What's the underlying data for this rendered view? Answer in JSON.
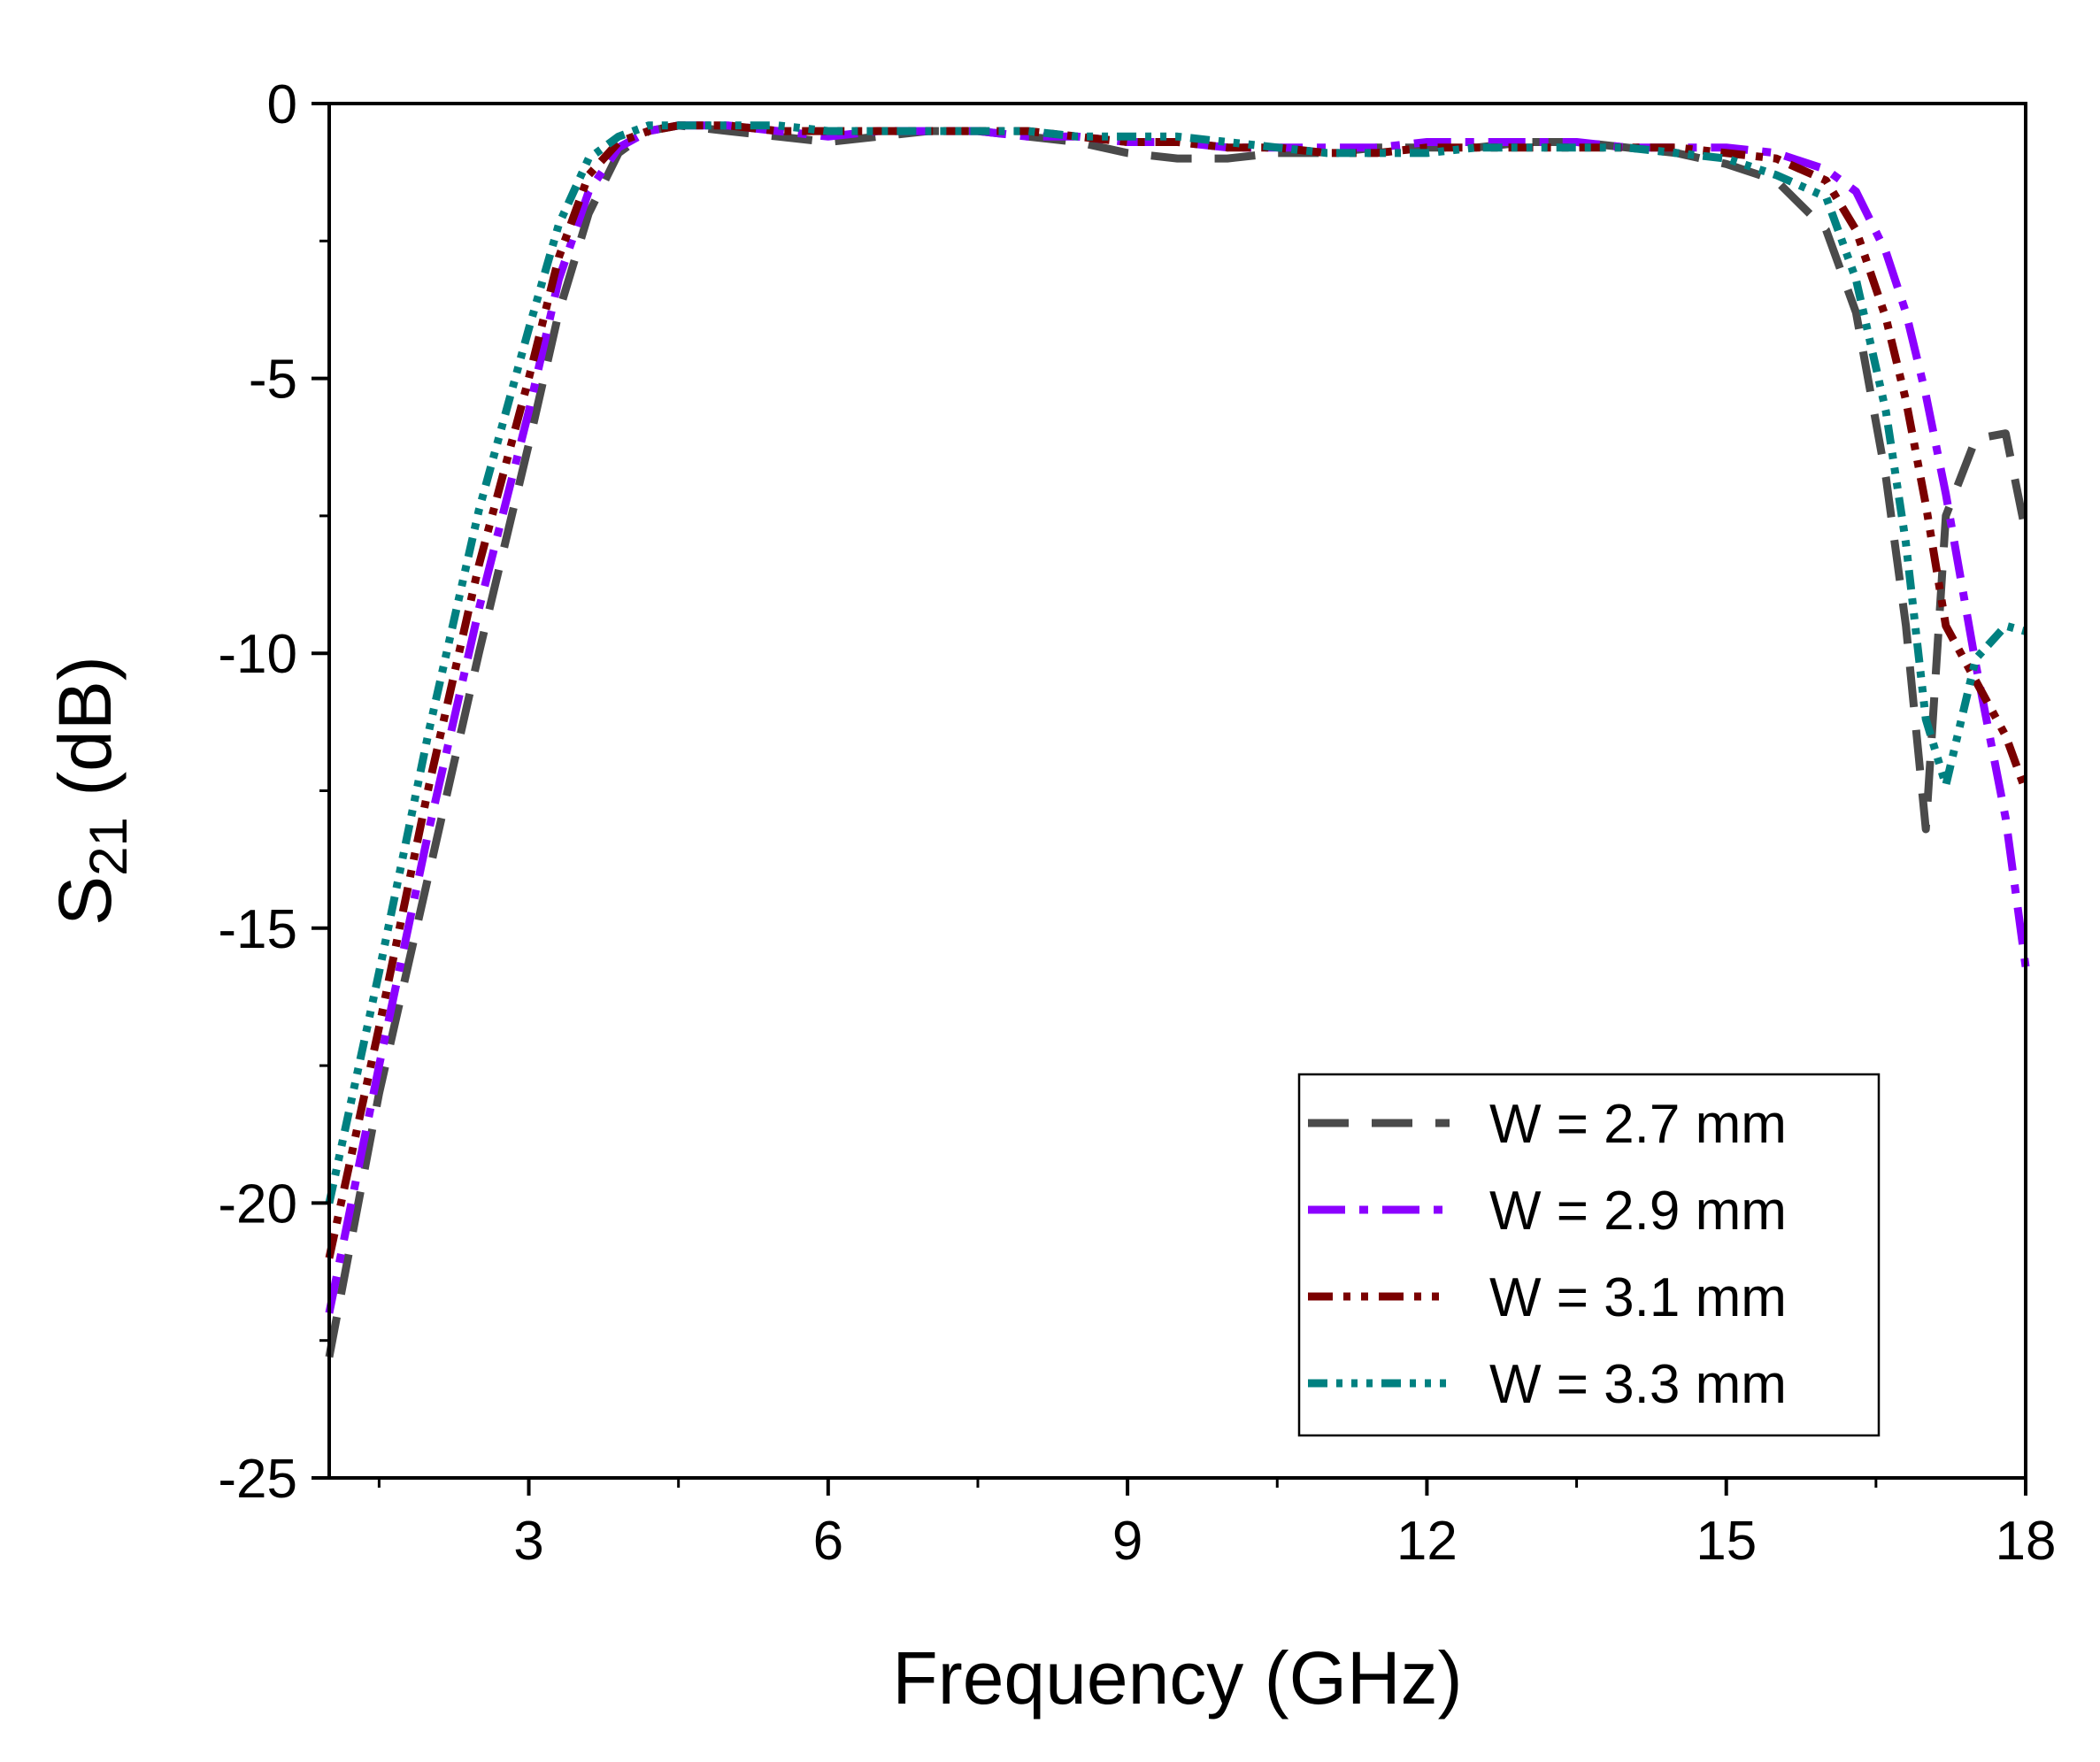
{
  "chart_data": {
    "type": "line",
    "title": "",
    "xlabel": "Frequency (GHz)",
    "ylabel_main": "S",
    "ylabel_sub": "21",
    "ylabel_unit": " (dB)",
    "xlim": [
      1,
      18
    ],
    "ylim": [
      -25,
      0
    ],
    "xticks": [
      3,
      6,
      9,
      12,
      15,
      18
    ],
    "xtick_labels": [
      "3",
      "6",
      "9",
      "12",
      "15",
      "18"
    ],
    "yticks": [
      0,
      -5,
      -10,
      -15,
      -20,
      -25
    ],
    "ytick_labels": [
      "0",
      "-5",
      "-10",
      "-15",
      "-20",
      "-25"
    ],
    "grid": false,
    "legend_position": "bottom-right",
    "series": [
      {
        "name": "W = 2.7 mm",
        "color": "#4a4a4a",
        "dash": "dashed",
        "x": [
          1.0,
          1.5,
          2.0,
          2.5,
          3.0,
          3.3,
          3.6,
          3.9,
          4.2,
          4.5,
          5.0,
          5.5,
          6.0,
          6.5,
          7.0,
          7.5,
          8.0,
          8.5,
          9.0,
          9.5,
          10.0,
          10.5,
          11.0,
          11.5,
          12.0,
          12.5,
          13.0,
          13.5,
          14.0,
          14.5,
          15.0,
          15.5,
          16.0,
          16.3,
          16.6,
          16.8,
          17.0,
          17.2,
          17.5,
          17.8,
          18.0
        ],
        "y": [
          -22.8,
          -18.0,
          -14.0,
          -10.0,
          -6.2,
          -3.8,
          -2.0,
          -0.9,
          -0.5,
          -0.4,
          -0.5,
          -0.6,
          -0.7,
          -0.6,
          -0.5,
          -0.5,
          -0.6,
          -0.7,
          -0.9,
          -1.0,
          -1.0,
          -0.9,
          -0.9,
          -0.8,
          -0.8,
          -0.8,
          -0.7,
          -0.7,
          -0.8,
          -0.9,
          -1.1,
          -1.4,
          -2.3,
          -3.8,
          -6.8,
          -9.5,
          -13.2,
          -7.5,
          -6.1,
          -6.0,
          -7.8
        ]
      },
      {
        "name": "W = 2.9 mm",
        "color": "#8b00ff",
        "dash": "dash-dot",
        "x": [
          1.0,
          1.5,
          2.0,
          2.5,
          3.0,
          3.3,
          3.6,
          3.9,
          4.2,
          4.5,
          5.0,
          5.5,
          6.0,
          6.5,
          7.0,
          7.5,
          8.0,
          8.5,
          9.0,
          9.5,
          10.0,
          10.5,
          11.0,
          11.5,
          12.0,
          12.5,
          13.0,
          13.5,
          14.0,
          14.5,
          15.0,
          15.5,
          16.0,
          16.3,
          16.6,
          16.8,
          17.0,
          17.2,
          17.5,
          17.8,
          18.0
        ],
        "y": [
          -22.0,
          -17.5,
          -13.2,
          -9.2,
          -5.6,
          -3.2,
          -1.6,
          -0.8,
          -0.5,
          -0.4,
          -0.4,
          -0.5,
          -0.6,
          -0.5,
          -0.5,
          -0.5,
          -0.6,
          -0.6,
          -0.7,
          -0.7,
          -0.8,
          -0.8,
          -0.8,
          -0.8,
          -0.7,
          -0.7,
          -0.7,
          -0.7,
          -0.8,
          -0.8,
          -0.8,
          -0.9,
          -1.2,
          -1.6,
          -2.7,
          -3.8,
          -5.3,
          -7.1,
          -10.2,
          -13.0,
          -15.7
        ]
      },
      {
        "name": "W = 3.1 mm",
        "color": "#7a0000",
        "dash": "dash-dot-dot",
        "x": [
          1.0,
          1.5,
          2.0,
          2.5,
          3.0,
          3.3,
          3.6,
          3.9,
          4.2,
          4.5,
          5.0,
          5.5,
          6.0,
          6.5,
          7.0,
          7.5,
          8.0,
          8.5,
          9.0,
          9.5,
          10.0,
          10.5,
          11.0,
          11.5,
          12.0,
          12.5,
          13.0,
          13.5,
          14.0,
          14.5,
          15.0,
          15.5,
          16.0,
          16.3,
          16.6,
          16.8,
          17.0,
          17.2,
          17.5,
          17.8,
          18.0
        ],
        "y": [
          -21.0,
          -16.8,
          -12.4,
          -8.4,
          -5.0,
          -2.8,
          -1.3,
          -0.7,
          -0.5,
          -0.4,
          -0.4,
          -0.5,
          -0.5,
          -0.5,
          -0.5,
          -0.5,
          -0.5,
          -0.6,
          -0.7,
          -0.7,
          -0.8,
          -0.8,
          -0.9,
          -0.9,
          -0.8,
          -0.8,
          -0.8,
          -0.8,
          -0.8,
          -0.8,
          -0.9,
          -1.0,
          -1.4,
          -2.3,
          -3.9,
          -5.4,
          -7.3,
          -9.5,
          -10.5,
          -11.5,
          -12.5
        ]
      },
      {
        "name": "W = 3.3 mm",
        "color": "#008080",
        "dash": "dash-dot-dot-dot",
        "x": [
          1.0,
          1.5,
          2.0,
          2.5,
          3.0,
          3.3,
          3.6,
          3.9,
          4.2,
          4.5,
          5.0,
          5.5,
          6.0,
          6.5,
          7.0,
          7.5,
          8.0,
          8.5,
          9.0,
          9.5,
          10.0,
          10.5,
          11.0,
          11.5,
          12.0,
          12.5,
          13.0,
          13.5,
          14.0,
          14.5,
          15.0,
          15.5,
          16.0,
          16.3,
          16.6,
          16.8,
          17.0,
          17.2,
          17.5,
          17.8,
          18.0
        ],
        "y": [
          -20.0,
          -15.8,
          -11.4,
          -7.4,
          -4.1,
          -2.2,
          -1.0,
          -0.6,
          -0.4,
          -0.4,
          -0.4,
          -0.4,
          -0.5,
          -0.5,
          -0.5,
          -0.5,
          -0.5,
          -0.6,
          -0.6,
          -0.6,
          -0.7,
          -0.8,
          -0.9,
          -0.9,
          -0.9,
          -0.8,
          -0.8,
          -0.8,
          -0.8,
          -0.9,
          -1.0,
          -1.3,
          -1.7,
          -3.2,
          -5.6,
          -8.0,
          -11.2,
          -12.4,
          -10.1,
          -9.5,
          -9.6
        ]
      }
    ]
  }
}
